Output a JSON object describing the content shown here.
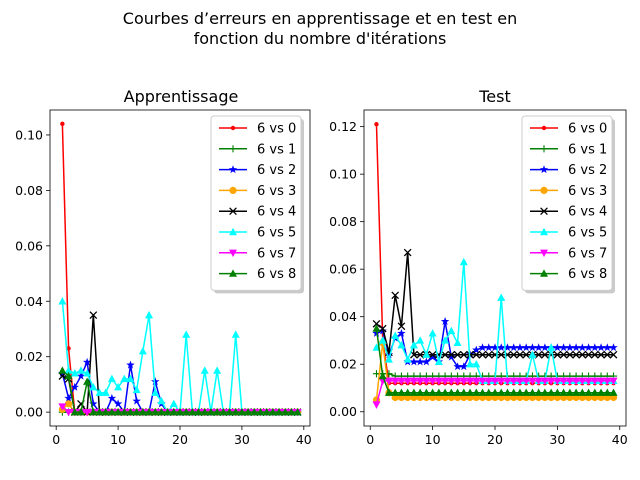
{
  "figure": {
    "suptitle_lines": [
      "Courbes d’erreurs en apprentissage et en test en",
      "fonction du nombre d'itérations"
    ]
  },
  "chart_data": [
    {
      "type": "line",
      "title": "Apprentissage",
      "xlabel": "",
      "ylabel": "",
      "xlim": [
        -1,
        41
      ],
      "ylim": [
        -0.005,
        0.109
      ],
      "xticks": [
        0,
        10,
        20,
        30,
        40
      ],
      "xtick_labels": [
        "0",
        "10",
        "20",
        "30",
        "40"
      ],
      "yticks": [
        0.0,
        0.02,
        0.04,
        0.06,
        0.08,
        0.1
      ],
      "ytick_labels": [
        "0.00",
        "0.02",
        "0.04",
        "0.06",
        "0.08",
        "0.10"
      ],
      "legend_position": "top-right",
      "x": [
        1,
        2,
        3,
        4,
        5,
        6,
        7,
        8,
        9,
        10,
        11,
        12,
        13,
        14,
        15,
        16,
        17,
        18,
        19,
        20,
        21,
        22,
        23,
        24,
        25,
        26,
        27,
        28,
        29,
        30,
        31,
        32,
        33,
        34,
        35,
        36,
        37,
        38,
        39
      ],
      "series": [
        {
          "name": "6 vs 0",
          "color": "#ff0000",
          "marker": "point",
          "values": [
            0.104,
            0.023,
            0.0,
            0.0,
            0.0,
            0.0,
            0.0,
            0.0,
            0.0,
            0.0,
            0.0,
            0.0,
            0.0,
            0.0,
            0.0,
            0.0,
            0.0,
            0.0,
            0.0,
            0.0,
            0.0,
            0.0,
            0.0,
            0.0,
            0.0,
            0.0,
            0.0,
            0.0,
            0.0,
            0.0,
            0.0,
            0.0,
            0.0,
            0.0,
            0.0,
            0.0,
            0.0,
            0.0,
            0.0
          ]
        },
        {
          "name": "6 vs 1",
          "color": "#008000",
          "marker": "plus",
          "values": [
            0.0,
            0.0,
            0.0,
            0.0,
            0.0,
            0.0,
            0.0,
            0.0,
            0.0,
            0.0,
            0.0,
            0.0,
            0.0,
            0.0,
            0.0,
            0.0,
            0.0,
            0.0,
            0.0,
            0.0,
            0.0,
            0.0,
            0.0,
            0.0,
            0.0,
            0.0,
            0.0,
            0.0,
            0.0,
            0.0,
            0.0,
            0.0,
            0.0,
            0.0,
            0.0,
            0.0,
            0.0,
            0.0,
            0.0
          ]
        },
        {
          "name": "6 vs 2",
          "color": "#0000ff",
          "marker": "star",
          "values": [
            0.014,
            0.005,
            0.009,
            0.013,
            0.018,
            0.003,
            0.0,
            0.0,
            0.005,
            0.003,
            0.0,
            0.017,
            0.004,
            0.0,
            0.0,
            0.011,
            0.003,
            0.0,
            0.0,
            0.0,
            0.0,
            0.0,
            0.0,
            0.0,
            0.0,
            0.0,
            0.0,
            0.0,
            0.0,
            0.0,
            0.0,
            0.0,
            0.0,
            0.0,
            0.0,
            0.0,
            0.0,
            0.0,
            0.0
          ]
        },
        {
          "name": "6 vs 3",
          "color": "#ffa500",
          "marker": "circle",
          "values": [
            0.001,
            0.003,
            0.0,
            0.0,
            0.0,
            0.0,
            0.0,
            0.0,
            0.0,
            0.0,
            0.0,
            0.0,
            0.0,
            0.0,
            0.0,
            0.0,
            0.0,
            0.0,
            0.0,
            0.0,
            0.0,
            0.0,
            0.0,
            0.0,
            0.0,
            0.0,
            0.0,
            0.0,
            0.0,
            0.0,
            0.0,
            0.0,
            0.0,
            0.0,
            0.0,
            0.0,
            0.0,
            0.0,
            0.0
          ]
        },
        {
          "name": "6 vs 4",
          "color": "#000000",
          "marker": "x",
          "values": [
            0.013,
            0.012,
            0.0,
            0.003,
            0.0,
            0.035,
            0.0,
            0.0,
            0.0,
            0.0,
            0.0,
            0.0,
            0.0,
            0.0,
            0.0,
            0.0,
            0.0,
            0.0,
            0.0,
            0.0,
            0.0,
            0.0,
            0.0,
            0.0,
            0.0,
            0.0,
            0.0,
            0.0,
            0.0,
            0.0,
            0.0,
            0.0,
            0.0,
            0.0,
            0.0,
            0.0,
            0.0,
            0.0,
            0.0
          ]
        },
        {
          "name": "6 vs 5",
          "color": "#00ffff",
          "marker": "triangle-up",
          "values": [
            0.04,
            0.015,
            0.014,
            0.015,
            0.014,
            0.009,
            0.007,
            0.007,
            0.012,
            0.009,
            0.012,
            0.012,
            0.008,
            0.022,
            0.035,
            0.007,
            0.004,
            0.0,
            0.003,
            0.0,
            0.028,
            0.0,
            0.0,
            0.015,
            0.0,
            0.015,
            0.0,
            0.0,
            0.028,
            0.0,
            0.0,
            0.0,
            0.0,
            0.0,
            0.0,
            0.0,
            0.0,
            0.0,
            0.0
          ]
        },
        {
          "name": "6 vs 7",
          "color": "#ff00ff",
          "marker": "triangle-down",
          "values": [
            0.002,
            0.0,
            0.0,
            0.0,
            0.0,
            0.0,
            0.0,
            0.0,
            0.0,
            0.0,
            0.0,
            0.0,
            0.0,
            0.0,
            0.0,
            0.0,
            0.0,
            0.0,
            0.0,
            0.0,
            0.0,
            0.0,
            0.0,
            0.0,
            0.0,
            0.0,
            0.0,
            0.0,
            0.0,
            0.0,
            0.0,
            0.0,
            0.0,
            0.0,
            0.0,
            0.0,
            0.0,
            0.0,
            0.0
          ]
        },
        {
          "name": "6 vs 8",
          "color": "#008000",
          "marker": "triangle-up",
          "values": [
            0.015,
            0.013,
            0.0,
            0.0,
            0.011,
            0.0,
            0.0,
            0.0,
            0.0,
            0.0,
            0.0,
            0.0,
            0.0,
            0.0,
            0.0,
            0.0,
            0.0,
            0.0,
            0.0,
            0.0,
            0.0,
            0.0,
            0.0,
            0.0,
            0.0,
            0.0,
            0.0,
            0.0,
            0.0,
            0.0,
            0.0,
            0.0,
            0.0,
            0.0,
            0.0,
            0.0,
            0.0,
            0.0,
            0.0
          ]
        }
      ]
    },
    {
      "type": "line",
      "title": "Test",
      "xlabel": "",
      "ylabel": "",
      "xlim": [
        -1,
        41
      ],
      "ylim": [
        -0.006,
        0.127
      ],
      "xticks": [
        0,
        10,
        20,
        30,
        40
      ],
      "xtick_labels": [
        "0",
        "10",
        "20",
        "30",
        "40"
      ],
      "yticks": [
        0.0,
        0.02,
        0.04,
        0.06,
        0.08,
        0.1,
        0.12
      ],
      "ytick_labels": [
        "0.00",
        "0.02",
        "0.04",
        "0.06",
        "0.08",
        "0.10",
        "0.12"
      ],
      "legend_position": "top-right",
      "x": [
        1,
        2,
        3,
        4,
        5,
        6,
        7,
        8,
        9,
        10,
        11,
        12,
        13,
        14,
        15,
        16,
        17,
        18,
        19,
        20,
        21,
        22,
        23,
        24,
        25,
        26,
        27,
        28,
        29,
        30,
        31,
        32,
        33,
        34,
        35,
        36,
        37,
        38,
        39
      ],
      "series": [
        {
          "name": "6 vs 0",
          "color": "#ff0000",
          "marker": "point",
          "values": [
            0.121,
            0.03,
            0.012,
            0.012,
            0.012,
            0.012,
            0.012,
            0.012,
            0.012,
            0.012,
            0.012,
            0.012,
            0.012,
            0.012,
            0.012,
            0.012,
            0.012,
            0.012,
            0.012,
            0.012,
            0.012,
            0.012,
            0.012,
            0.012,
            0.012,
            0.012,
            0.012,
            0.012,
            0.012,
            0.012,
            0.012,
            0.012,
            0.012,
            0.012,
            0.012,
            0.012,
            0.012,
            0.012,
            0.012
          ]
        },
        {
          "name": "6 vs 1",
          "color": "#008000",
          "marker": "plus",
          "values": [
            0.016,
            0.016,
            0.016,
            0.015,
            0.015,
            0.015,
            0.015,
            0.015,
            0.015,
            0.015,
            0.015,
            0.015,
            0.015,
            0.015,
            0.015,
            0.015,
            0.015,
            0.015,
            0.015,
            0.015,
            0.015,
            0.015,
            0.015,
            0.015,
            0.015,
            0.015,
            0.015,
            0.015,
            0.015,
            0.015,
            0.015,
            0.015,
            0.015,
            0.015,
            0.015,
            0.015,
            0.015,
            0.015,
            0.015
          ]
        },
        {
          "name": "6 vs 2",
          "color": "#0000ff",
          "marker": "star",
          "values": [
            0.033,
            0.034,
            0.024,
            0.031,
            0.033,
            0.021,
            0.021,
            0.021,
            0.021,
            0.023,
            0.021,
            0.038,
            0.023,
            0.019,
            0.019,
            0.024,
            0.026,
            0.027,
            0.027,
            0.027,
            0.027,
            0.027,
            0.027,
            0.027,
            0.027,
            0.027,
            0.027,
            0.027,
            0.027,
            0.027,
            0.027,
            0.027,
            0.027,
            0.027,
            0.027,
            0.027,
            0.027,
            0.027,
            0.027
          ]
        },
        {
          "name": "6 vs 3",
          "color": "#ffa500",
          "marker": "circle",
          "values": [
            0.005,
            0.029,
            0.008,
            0.006,
            0.006,
            0.006,
            0.006,
            0.006,
            0.006,
            0.006,
            0.006,
            0.006,
            0.006,
            0.006,
            0.006,
            0.006,
            0.006,
            0.006,
            0.006,
            0.006,
            0.006,
            0.006,
            0.006,
            0.006,
            0.006,
            0.006,
            0.006,
            0.006,
            0.006,
            0.006,
            0.006,
            0.006,
            0.006,
            0.006,
            0.006,
            0.006,
            0.006,
            0.006,
            0.006
          ]
        },
        {
          "name": "6 vs 4",
          "color": "#000000",
          "marker": "x",
          "values": [
            0.037,
            0.035,
            0.025,
            0.049,
            0.036,
            0.067,
            0.024,
            0.024,
            0.024,
            0.024,
            0.024,
            0.024,
            0.024,
            0.024,
            0.024,
            0.024,
            0.024,
            0.024,
            0.024,
            0.024,
            0.024,
            0.024,
            0.024,
            0.024,
            0.024,
            0.024,
            0.024,
            0.024,
            0.024,
            0.024,
            0.024,
            0.024,
            0.024,
            0.024,
            0.024,
            0.024,
            0.024,
            0.024,
            0.024
          ]
        },
        {
          "name": "6 vs 5",
          "color": "#00ffff",
          "marker": "triangle-up",
          "values": [
            0.027,
            0.03,
            0.022,
            0.032,
            0.028,
            0.022,
            0.028,
            0.03,
            0.024,
            0.033,
            0.021,
            0.03,
            0.034,
            0.029,
            0.063,
            0.02,
            0.02,
            0.013,
            0.013,
            0.013,
            0.048,
            0.013,
            0.013,
            0.013,
            0.013,
            0.024,
            0.013,
            0.013,
            0.027,
            0.013,
            0.013,
            0.013,
            0.013,
            0.013,
            0.013,
            0.013,
            0.013,
            0.013,
            0.013
          ]
        },
        {
          "name": "6 vs 7",
          "color": "#ff00ff",
          "marker": "triangle-down",
          "values": [
            0.003,
            0.013,
            0.013,
            0.013,
            0.013,
            0.013,
            0.013,
            0.013,
            0.013,
            0.013,
            0.013,
            0.013,
            0.013,
            0.013,
            0.013,
            0.013,
            0.013,
            0.013,
            0.013,
            0.013,
            0.013,
            0.013,
            0.013,
            0.013,
            0.013,
            0.013,
            0.013,
            0.013,
            0.013,
            0.013,
            0.013,
            0.013,
            0.013,
            0.013,
            0.013,
            0.013,
            0.013,
            0.013,
            0.013
          ]
        },
        {
          "name": "6 vs 8",
          "color": "#008000",
          "marker": "triangle-up",
          "values": [
            0.035,
            0.015,
            0.008,
            0.008,
            0.008,
            0.008,
            0.008,
            0.008,
            0.008,
            0.008,
            0.008,
            0.008,
            0.008,
            0.008,
            0.008,
            0.008,
            0.008,
            0.008,
            0.008,
            0.008,
            0.008,
            0.008,
            0.008,
            0.008,
            0.008,
            0.008,
            0.008,
            0.008,
            0.008,
            0.008,
            0.008,
            0.008,
            0.008,
            0.008,
            0.008,
            0.008,
            0.008,
            0.008,
            0.008
          ]
        }
      ]
    }
  ]
}
